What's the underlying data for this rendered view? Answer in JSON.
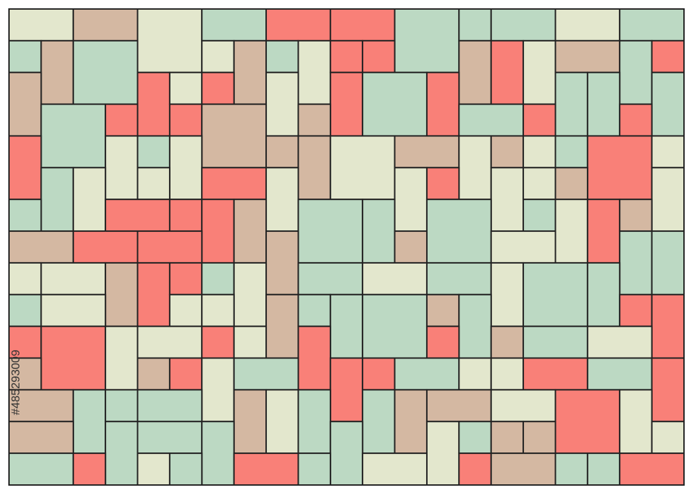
{
  "watermark_id": "#485293009"
}
